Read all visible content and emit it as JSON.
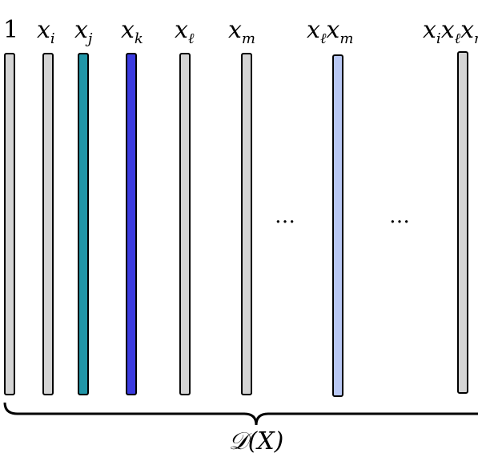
{
  "columns": [
    {
      "label": "1",
      "color": "#d4d4d4"
    },
    {
      "label": "x_i",
      "color": "#d4d4d4"
    },
    {
      "label": "x_j",
      "color": "#2196a8"
    },
    {
      "label": "x_k",
      "color": "#3b3be0"
    },
    {
      "label": "x_ℓ",
      "color": "#d4d4d4"
    },
    {
      "label": "x_m",
      "color": "#d4d4d4"
    },
    {
      "label": "x_ℓx_m",
      "color": "#b9c8f4"
    },
    {
      "label": "x_ix_ℓx_m",
      "color": "#d4d4d4"
    }
  ],
  "ellipsis": "…",
  "brace_label": "𝒟(X)"
}
